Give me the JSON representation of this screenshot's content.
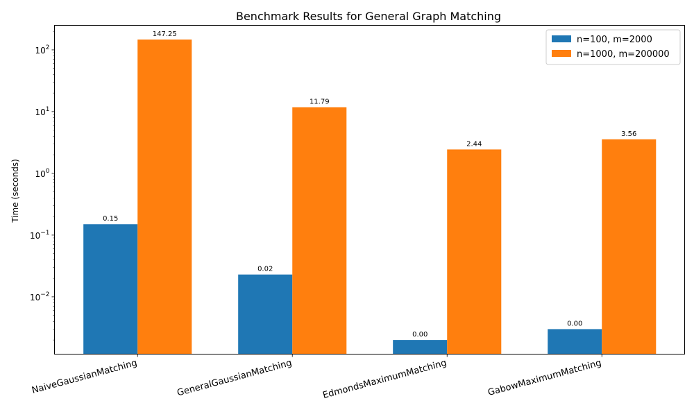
{
  "chart_data": {
    "type": "bar",
    "title": "Benchmark Results for General Graph Matching",
    "xlabel": "",
    "ylabel": "Time (seconds)",
    "yscale": "log",
    "ylim": [
      0.00118,
      250
    ],
    "yticks": [
      {
        "value": 0.01,
        "base": "10",
        "exp": "−2"
      },
      {
        "value": 0.1,
        "base": "10",
        "exp": "−1"
      },
      {
        "value": 1,
        "base": "10",
        "exp": "0"
      },
      {
        "value": 10,
        "base": "10",
        "exp": "1"
      },
      {
        "value": 100,
        "base": "10",
        "exp": "2"
      }
    ],
    "categories": [
      "NaiveGaussianMatching",
      "GeneralGaussianMatching",
      "EdmondsMaximumMatching",
      "GabowMaximumMatching"
    ],
    "series": [
      {
        "name": "n=100, m=2000",
        "color": "#1f77b4",
        "values": [
          0.15,
          0.023,
          0.002,
          0.003
        ],
        "labels": [
          "0.15",
          "0.02",
          "0.00",
          "0.00"
        ]
      },
      {
        "name": "n=1000, m=200000",
        "color": "#ff7f0e",
        "values": [
          147.25,
          11.79,
          2.44,
          3.56
        ],
        "labels": [
          "147.25",
          "11.79",
          "2.44",
          "3.56"
        ]
      }
    ],
    "legend_position": "top-right",
    "grid": false
  }
}
